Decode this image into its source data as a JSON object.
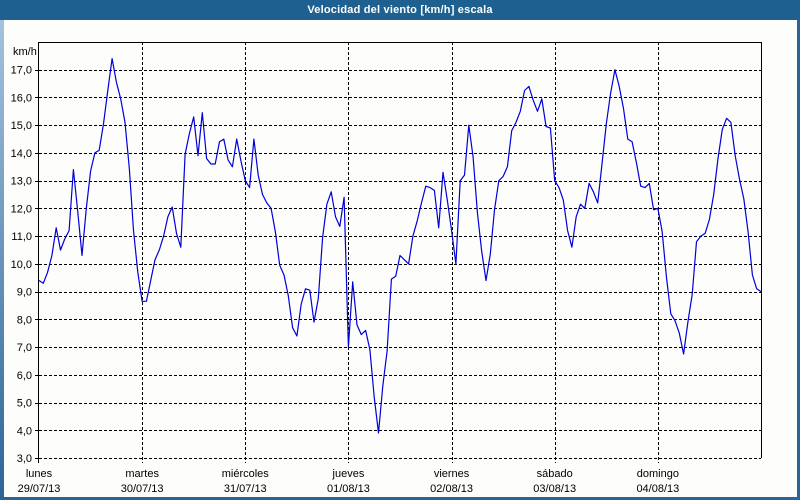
{
  "window": {
    "title": "Velocidad del viento [km/h] escala"
  },
  "colors": {
    "titlebar": "#1E6190",
    "frame": "#2B6598",
    "frame_light": "#A9C6E0",
    "plot_bg": "#FDFDFB",
    "line": "#0000DC",
    "grid": "#000000",
    "text": "#000000"
  },
  "chart_data": {
    "type": "line",
    "title": "Velocidad del viento [km/h] escala",
    "ylabel": "km/h",
    "unit": "km/h",
    "ylim": [
      3,
      18
    ],
    "grid": "dashed",
    "legend_position": "none",
    "yticks": [
      3,
      4,
      5,
      6,
      7,
      8,
      9,
      10,
      11,
      12,
      13,
      14,
      15,
      16,
      17
    ],
    "ytick_labels": [
      "3,0",
      "4,0",
      "5,0",
      "6,0",
      "7,0",
      "8,0",
      "9,0",
      "10,0",
      "11,0",
      "12,0",
      "13,0",
      "14,0",
      "15,0",
      "16,0",
      "17,0"
    ],
    "x_days": [
      {
        "label": "lunes",
        "date": "29/07/13"
      },
      {
        "label": "martes",
        "date": "30/07/13"
      },
      {
        "label": "miércoles",
        "date": "31/07/13"
      },
      {
        "label": "jueves",
        "date": "01/08/13"
      },
      {
        "label": "viernes",
        "date": "02/08/13"
      },
      {
        "label": "sábado",
        "date": "03/08/13"
      },
      {
        "label": "domingo",
        "date": "04/08/13"
      }
    ],
    "points_per_day": 24,
    "series": [
      {
        "name": "Velocidad del viento",
        "values": [
          9.4,
          9.3,
          9.7,
          10.3,
          11.3,
          10.5,
          10.9,
          11.2,
          13.4,
          11.9,
          10.3,
          12.0,
          13.35,
          14.0,
          14.1,
          15.05,
          16.25,
          17.4,
          16.55,
          15.95,
          15.1,
          13.45,
          11.2,
          9.7,
          8.65,
          8.65,
          9.4,
          10.15,
          10.5,
          11.0,
          11.7,
          12.05,
          11.1,
          10.6,
          13.95,
          14.7,
          15.3,
          13.9,
          15.45,
          13.8,
          13.6,
          13.6,
          14.4,
          14.5,
          13.75,
          13.5,
          14.5,
          13.7,
          13.0,
          12.75,
          14.5,
          13.2,
          12.5,
          12.2,
          12.0,
          11.15,
          9.95,
          9.6,
          8.85,
          7.7,
          7.4,
          8.55,
          9.1,
          9.05,
          7.9,
          8.75,
          10.95,
          12.15,
          12.6,
          11.7,
          11.35,
          12.4,
          7.0,
          9.35,
          7.8,
          7.45,
          7.6,
          6.9,
          5.2,
          3.9,
          5.6,
          6.85,
          9.45,
          9.55,
          10.3,
          10.15,
          10.0,
          11.0,
          11.55,
          12.2,
          12.8,
          12.75,
          12.65,
          11.3,
          13.3,
          12.3,
          11.2,
          10.0,
          13.0,
          13.2,
          15.0,
          13.85,
          11.85,
          10.45,
          9.4,
          10.35,
          11.95,
          13.0,
          13.15,
          13.5,
          14.8,
          15.1,
          15.5,
          16.25,
          16.4,
          15.9,
          15.5,
          15.95,
          14.95,
          14.9,
          13.0,
          12.75,
          12.3,
          11.2,
          10.6,
          11.7,
          12.15,
          12.0,
          12.9,
          12.6,
          12.2,
          13.6,
          15.05,
          16.15,
          17.0,
          16.4,
          15.6,
          14.5,
          14.4,
          13.65,
          12.8,
          12.75,
          12.9,
          11.95,
          12.0,
          11.15,
          9.5,
          8.2,
          7.95,
          7.5,
          6.75,
          7.9,
          8.9,
          10.8,
          11.0,
          11.1,
          11.6,
          12.5,
          13.8,
          14.85,
          15.25,
          15.1,
          13.9,
          13.05,
          12.35,
          11.15,
          9.6,
          9.1,
          9.0
        ]
      }
    ]
  }
}
